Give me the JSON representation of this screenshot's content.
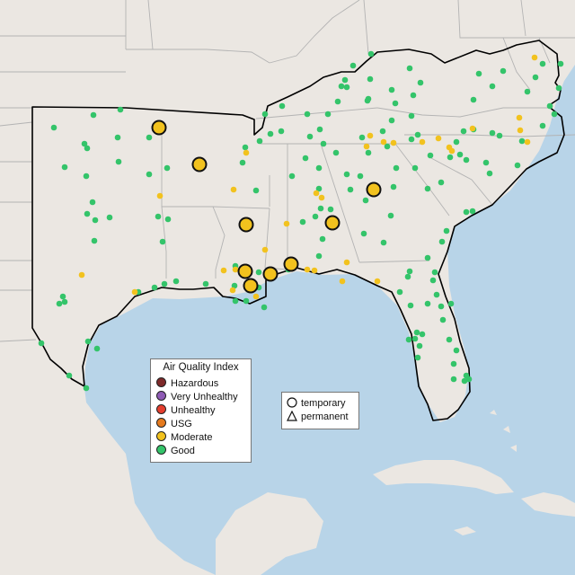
{
  "map": {
    "colors": {
      "water": "#b8d4e8",
      "land": "#ebe7e2",
      "land_relief": "#e2ddd7",
      "boundary": "#b3b3b3",
      "region_outline": "#000000"
    }
  },
  "legend_aqi": {
    "title": "Air Quality Index",
    "items": [
      {
        "label": "Hazardous",
        "color": "#7e2a2a"
      },
      {
        "label": "Very Unhealthy",
        "color": "#8f5bb5"
      },
      {
        "label": "Unhealthy",
        "color": "#e43e2e"
      },
      {
        "label": "USG",
        "color": "#e57a1e"
      },
      {
        "label": "Moderate",
        "color": "#f2c21e"
      },
      {
        "label": "Good",
        "color": "#34c46a"
      }
    ]
  },
  "legend_type": {
    "items": [
      {
        "label": "temporary",
        "symbol": "circle-icon"
      },
      {
        "label": "permanent",
        "symbol": "triangle-icon"
      }
    ]
  }
}
